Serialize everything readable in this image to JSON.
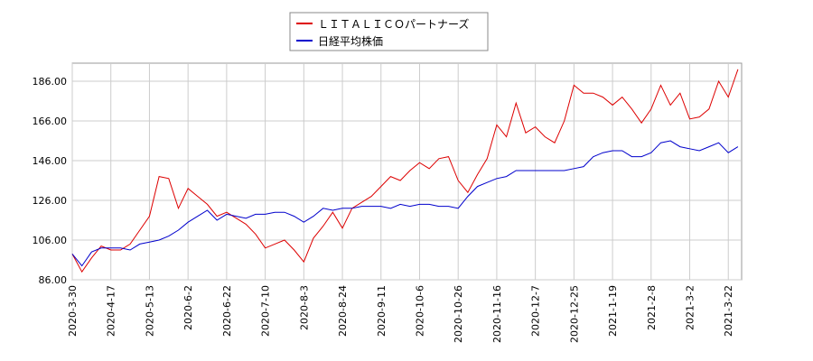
{
  "chart_data": {
    "type": "line",
    "categories": [
      "2020-3-30",
      null,
      null,
      null,
      "2020-4-17",
      null,
      null,
      null,
      "2020-5-13",
      null,
      null,
      null,
      "2020-6-2",
      null,
      null,
      null,
      "2020-6-22",
      null,
      null,
      null,
      "2020-7-10",
      null,
      null,
      null,
      "2020-8-3",
      null,
      null,
      null,
      "2020-8-24",
      null,
      null,
      null,
      "2020-9-11",
      null,
      null,
      null,
      "2020-10-6",
      null,
      null,
      null,
      "2020-10-26",
      null,
      null,
      null,
      "2020-11-16",
      null,
      null,
      null,
      "2020-12-7",
      null,
      null,
      null,
      "2020-12-25",
      null,
      null,
      null,
      "2021-1-19",
      null,
      null,
      null,
      "2021-2-8",
      null,
      null,
      null,
      "2021-3-2",
      null,
      null,
      null,
      "2021-3-22",
      null
    ],
    "series": [
      {
        "name": "ＬＩＴＡＬＩＣＯパートナーズ",
        "color": "#dd0000",
        "values": [
          99,
          90,
          97,
          103,
          101,
          101,
          104,
          111,
          118,
          138,
          137,
          122,
          132,
          128,
          124,
          118,
          120,
          117,
          114,
          109,
          102,
          104,
          106,
          101,
          95,
          107,
          113,
          120,
          112,
          122,
          125,
          128,
          133,
          138,
          136,
          141,
          145,
          142,
          147,
          148,
          136,
          130,
          139,
          147,
          164,
          158,
          175,
          160,
          163,
          158,
          155,
          166,
          184,
          180,
          180,
          178,
          174,
          178,
          172,
          165,
          172,
          184,
          174,
          180,
          167,
          168,
          172,
          186,
          178,
          192
        ]
      },
      {
        "name": "日経平均株価",
        "color": "#0000cc",
        "values": [
          99,
          93,
          100,
          102,
          102,
          102,
          101,
          104,
          105,
          106,
          108,
          111,
          115,
          118,
          121,
          116,
          119,
          118,
          117,
          119,
          119,
          120,
          120,
          118,
          115,
          118,
          122,
          121,
          122,
          122,
          123,
          123,
          123,
          122,
          124,
          123,
          124,
          124,
          123,
          123,
          122,
          128,
          133,
          135,
          137,
          138,
          141,
          141,
          141,
          141,
          141,
          141,
          142,
          143,
          148,
          150,
          151,
          151,
          148,
          148,
          150,
          155,
          156,
          153,
          152,
          151,
          153,
          155,
          150,
          153
        ]
      }
    ],
    "ylim": [
      86,
      195.1
    ],
    "yticks": [
      {
        "value": 86,
        "label": "86.00"
      },
      {
        "value": 106,
        "label": "106.00"
      },
      {
        "value": 126,
        "label": "126.00"
      },
      {
        "value": 146,
        "label": "146.00"
      },
      {
        "value": 166,
        "label": "166.00"
      },
      {
        "value": 186,
        "label": "186.00"
      }
    ],
    "grid": true
  }
}
